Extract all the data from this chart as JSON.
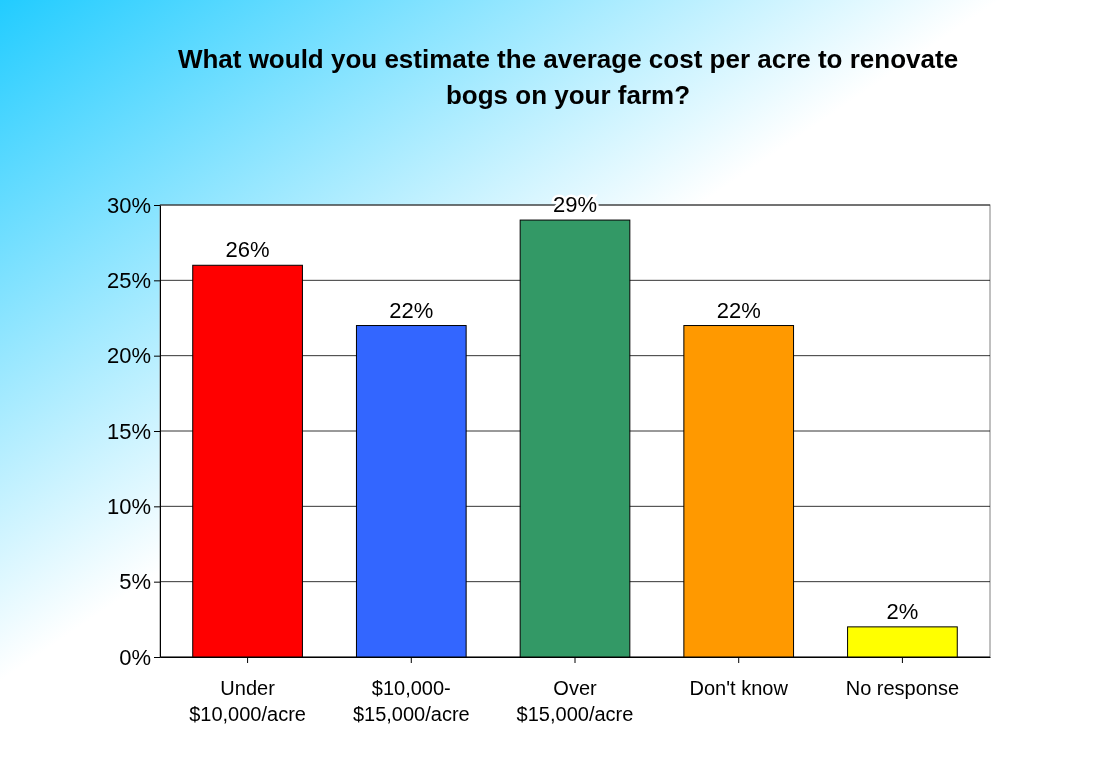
{
  "chart_data": {
    "type": "bar",
    "title": "What would you estimate the average cost per acre to renovate bogs on your farm?",
    "categories": [
      "Under\n$10,000/acre",
      "$10,000-\n$15,000/acre",
      "Over\n$15,000/acre",
      "Don't know",
      "No response"
    ],
    "values": [
      26,
      22,
      29,
      22,
      2
    ],
    "colors": [
      "#ff0000",
      "#3366ff",
      "#339966",
      "#ff9900",
      "#ffff00"
    ],
    "value_labels": [
      "26%",
      "22%",
      "29%",
      "22%",
      "2%"
    ],
    "ylim": [
      0,
      30
    ],
    "yticks": [
      {
        "value": 0,
        "label": "0%"
      },
      {
        "value": 5,
        "label": "5%"
      },
      {
        "value": 10,
        "label": "10%"
      },
      {
        "value": 15,
        "label": "15%"
      },
      {
        "value": 20,
        "label": "20%"
      },
      {
        "value": 25,
        "label": "25%"
      },
      {
        "value": 30,
        "label": "30%"
      }
    ],
    "grid": "y"
  }
}
